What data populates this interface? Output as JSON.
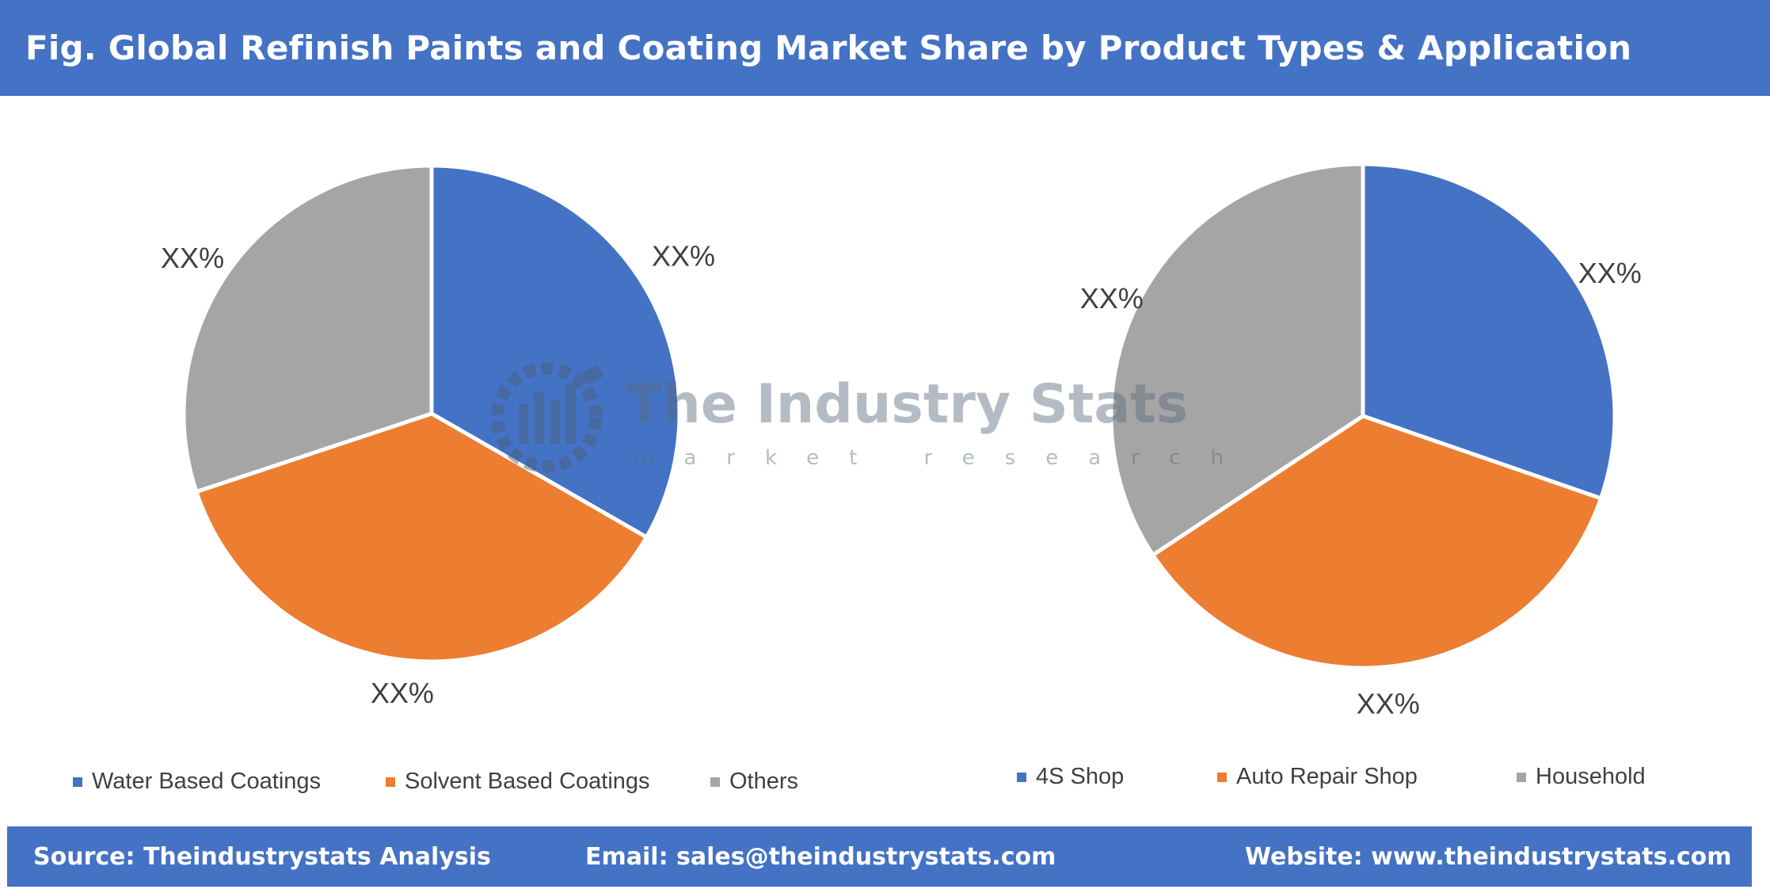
{
  "title": "Fig. Global Refinish Paints and Coating Market Share by Product Types & Application",
  "colors": {
    "blue": "#4472c4",
    "orange": "#ed7d31",
    "gray": "#a5a5a5",
    "header_bg": "#4472c4"
  },
  "watermark": {
    "main": "The Industry Stats",
    "sub": "market research",
    "icon": "gear-chart-logo-icon"
  },
  "chart_data": [
    {
      "type": "pie",
      "categories": [
        "Water Based Coatings",
        "Solvent Based Coatings",
        "Others"
      ],
      "values": [
        33.3,
        36.6,
        30.1
      ],
      "data_labels": [
        "XX%",
        "XX%",
        "XX%"
      ],
      "legend": "bottom",
      "colors": [
        "#4472c4",
        "#ed7d31",
        "#a5a5a5"
      ]
    },
    {
      "type": "pie",
      "categories": [
        "4S Shop",
        "Auto Repair Shop",
        "Household"
      ],
      "values": [
        30.3,
        35.4,
        34.3
      ],
      "data_labels": [
        "XX%",
        "XX%",
        "XX%"
      ],
      "legend": "bottom",
      "colors": [
        "#4472c4",
        "#ed7d31",
        "#a5a5a5"
      ]
    }
  ],
  "footer": {
    "source": "Source: Theindustrystats Analysis",
    "email": "Email: sales@theindustrystats.com",
    "website": "Website: www.theindustrystats.com"
  }
}
